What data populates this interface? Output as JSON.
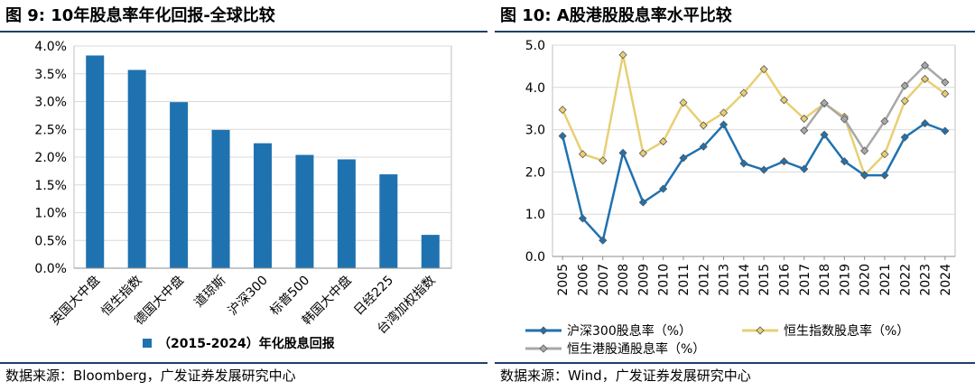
{
  "left": {
    "title_label": "图 9:",
    "title_text": "10年股息率年化回报-全球比较",
    "source": "数据来源：Bloomberg，广发证券发展研究中心",
    "chart_data": {
      "type": "bar",
      "categories": [
        "英国大中盘",
        "恒生指数",
        "德国大中盘",
        "道琼斯",
        "沪深300",
        "标普500",
        "韩国大中盘",
        "日经225",
        "台湾加权指数"
      ],
      "series": [
        {
          "name": "（2015-2024）年化股息回报",
          "values": [
            3.83,
            3.57,
            2.99,
            2.49,
            2.25,
            2.04,
            1.96,
            1.69,
            0.6
          ],
          "color": "#1f72b0"
        }
      ],
      "y_ticks": [
        "0.0%",
        "0.5%",
        "1.0%",
        "1.5%",
        "2.0%",
        "2.5%",
        "3.0%",
        "3.5%",
        "4.0%"
      ],
      "ylim": [
        0,
        4.0
      ],
      "grid": true,
      "legend_position": "bottom"
    }
  },
  "right": {
    "title_label": "图 10:",
    "title_text": "A股港股股息率水平比较",
    "source": "数据来源：Wind，广发证券发展研究中心",
    "chart_data": {
      "type": "line",
      "x": [
        "2005",
        "2006",
        "2007",
        "2008",
        "2009",
        "2010",
        "2011",
        "2012",
        "2013",
        "2014",
        "2015",
        "2016",
        "2017",
        "2018",
        "2019",
        "2020",
        "2021",
        "2022",
        "2023",
        "2024"
      ],
      "series": [
        {
          "name": "沪深300股息率（%）",
          "color": "#1f72b0",
          "values": [
            2.85,
            0.9,
            0.38,
            2.45,
            1.28,
            1.6,
            2.33,
            2.6,
            3.12,
            2.2,
            2.05,
            2.25,
            2.07,
            2.88,
            2.25,
            1.92,
            1.92,
            2.82,
            3.15,
            2.97
          ]
        },
        {
          "name": "恒生指数股息率（%）",
          "color": "#e8cf74",
          "values": [
            3.47,
            2.42,
            2.27,
            4.77,
            2.44,
            2.72,
            3.64,
            3.1,
            3.4,
            3.87,
            4.43,
            3.7,
            3.26,
            3.62,
            3.3,
            1.93,
            2.42,
            3.68,
            4.2,
            3.85
          ]
        },
        {
          "name": "恒生港股通股息率（%）",
          "color": "#a8a8a8",
          "values": [
            null,
            null,
            null,
            null,
            null,
            null,
            null,
            null,
            null,
            null,
            null,
            null,
            2.98,
            3.63,
            3.25,
            2.5,
            3.2,
            4.04,
            4.52,
            4.12
          ]
        }
      ],
      "y_ticks": [
        "0.0",
        "1.0",
        "2.0",
        "3.0",
        "4.0",
        "5.0"
      ],
      "ylim": [
        0,
        5.0
      ],
      "grid": true,
      "legend_position": "bottom"
    }
  }
}
